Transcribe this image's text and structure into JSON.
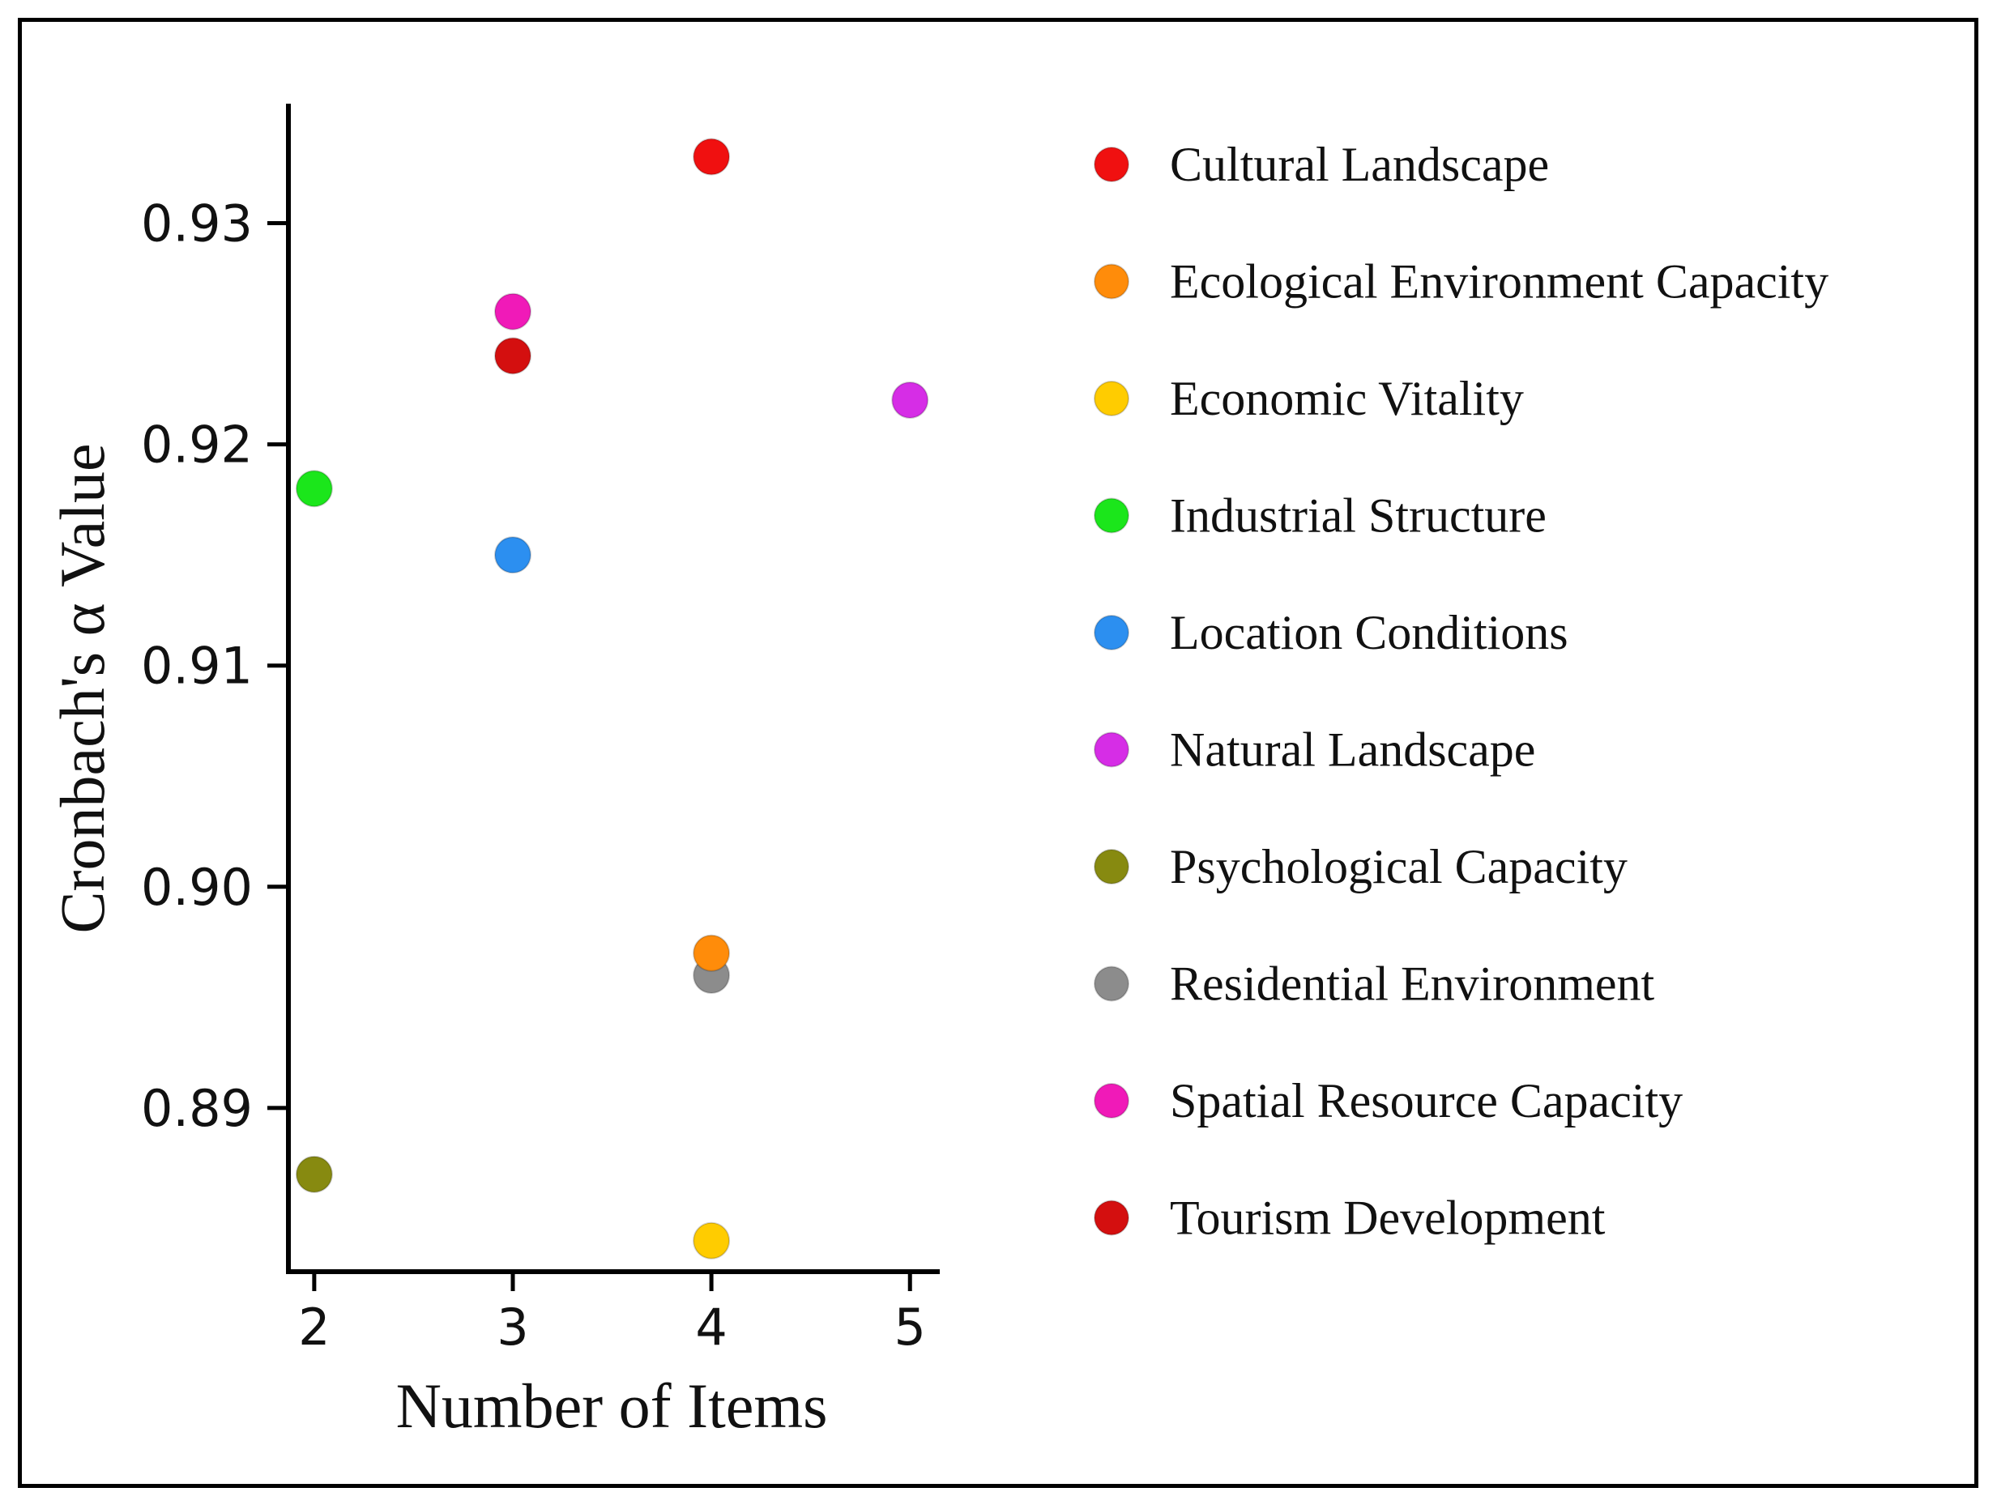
{
  "chart_data": {
    "type": "scatter",
    "xlabel": "Number of Items",
    "ylabel": "Cronbach's α Value",
    "xlim": [
      1.87,
      5.15
    ],
    "ylim": [
      0.8826,
      0.9354
    ],
    "xticks": [
      2,
      3,
      4,
      5
    ],
    "xtick_labels": [
      "2",
      "3",
      "4",
      "5"
    ],
    "yticks": [
      0.89,
      0.9,
      0.91,
      0.92,
      0.93
    ],
    "ytick_labels": [
      "0.89",
      "0.90",
      "0.91",
      "0.92",
      "0.93"
    ],
    "grid": false,
    "legend_position": "right",
    "series": [
      {
        "name": "Cultural Landscape",
        "color": "#f01010",
        "x": 4,
        "y": 0.933
      },
      {
        "name": "Ecological Environment Capacity",
        "color": "#ff8c0a",
        "x": 4,
        "y": 0.897
      },
      {
        "name": "Economic Vitality",
        "color": "#ffcc00",
        "x": 4,
        "y": 0.884
      },
      {
        "name": "Industrial Structure",
        "color": "#1be61b",
        "x": 2,
        "y": 0.918
      },
      {
        "name": "Location Conditions",
        "color": "#2c8ff0",
        "x": 3,
        "y": 0.915
      },
      {
        "name": "Natural Landscape",
        "color": "#d62de6",
        "x": 5,
        "y": 0.922
      },
      {
        "name": "Psychological Capacity",
        "color": "#878a10",
        "x": 2,
        "y": 0.887
      },
      {
        "name": "Residential Environment",
        "color": "#8c8c8c",
        "x": 4,
        "y": 0.896
      },
      {
        "name": "Spatial Resource Capacity",
        "color": "#f01ab8",
        "x": 3,
        "y": 0.926
      },
      {
        "name": "Tourism Development",
        "color": "#d40f0f",
        "x": 3,
        "y": 0.924
      }
    ],
    "draw_order": [
      "Residential Environment",
      "Ecological Environment Capacity",
      "Economic Vitality",
      "Psychological Capacity",
      "Industrial Structure",
      "Location Conditions",
      "Natural Landscape",
      "Tourism Development",
      "Spatial Resource Capacity",
      "Cultural Landscape"
    ]
  }
}
